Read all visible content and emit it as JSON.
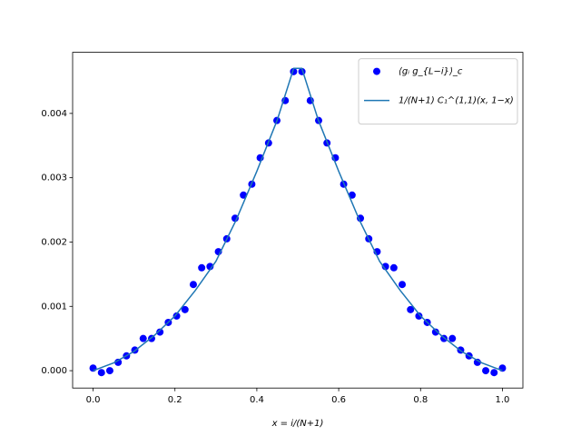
{
  "chart_data": {
    "type": "scatter",
    "xlabel": "x = i/(N+1)",
    "xlim": [
      -0.05,
      1.05
    ],
    "ylim": [
      -0.00027,
      0.00495
    ],
    "xticks": [
      {
        "value": 0,
        "label": "0.0"
      },
      {
        "value": 0.2,
        "label": "0.2"
      },
      {
        "value": 0.4,
        "label": "0.4"
      },
      {
        "value": 0.6,
        "label": "0.6"
      },
      {
        "value": 0.8,
        "label": "0.8"
      },
      {
        "value": 1,
        "label": "1.0"
      }
    ],
    "yticks": [
      {
        "value": 0,
        "label": "0.000"
      },
      {
        "value": 0.001,
        "label": "0.001"
      },
      {
        "value": 0.002,
        "label": "0.002"
      },
      {
        "value": 0.003,
        "label": "0.003"
      },
      {
        "value": 0.004,
        "label": "0.004"
      }
    ],
    "legend": "upper right",
    "series": [
      {
        "name": "⟨gᵢ g_{L−i}⟩_c",
        "type": "scatter",
        "color": "#0000ff",
        "x": [
          0,
          0.0204,
          0.0408,
          0.0612,
          0.0816,
          0.102,
          0.1224,
          0.1429,
          0.1633,
          0.1837,
          0.2041,
          0.2245,
          0.2449,
          0.2653,
          0.2857,
          0.3061,
          0.3265,
          0.3469,
          0.3673,
          0.3878,
          0.4082,
          0.4286,
          0.449,
          0.4694,
          0.4898,
          0.5102,
          0.5306,
          0.551,
          0.5714,
          0.5918,
          0.6122,
          0.6327,
          0.6531,
          0.6735,
          0.6939,
          0.7143,
          0.7347,
          0.7551,
          0.7755,
          0.7959,
          0.8163,
          0.8367,
          0.8571,
          0.8776,
          0.898,
          0.9184,
          0.9388,
          0.9592,
          0.9796,
          1
        ],
        "values": [
          4e-05,
          -3e-05,
          0.0,
          0.00013,
          0.00023,
          0.00032,
          0.0005,
          0.0005,
          0.0006,
          0.00075,
          0.00085,
          0.00095,
          0.00134,
          0.0016,
          0.00162,
          0.00185,
          0.00205,
          0.00237,
          0.00273,
          0.0029,
          0.00331,
          0.00354,
          0.00389,
          0.0042,
          0.00465,
          0.00465,
          0.0042,
          0.00389,
          0.00354,
          0.00331,
          0.0029,
          0.00273,
          0.00237,
          0.00205,
          0.00185,
          0.00162,
          0.0016,
          0.00134,
          0.00095,
          0.00085,
          0.00075,
          0.0006,
          0.0005,
          0.0005,
          0.00032,
          0.00023,
          0.00013,
          0.0,
          -3e-05,
          4e-05
        ]
      },
      {
        "name": "1/(N+1) C₁^(1,1)(x, 1−x)",
        "type": "line",
        "color": "#1f77b4",
        "x": [
          0,
          0.05,
          0.1,
          0.15,
          0.2,
          0.25,
          0.3,
          0.35,
          0.4,
          0.45,
          0.49,
          0.51,
          0.55,
          0.6,
          0.65,
          0.7,
          0.75,
          0.8,
          0.85,
          0.9,
          0.95,
          1
        ],
        "values": [
          0,
          0.00012,
          0.0003,
          0.00055,
          0.00085,
          0.00125,
          0.0017,
          0.00235,
          0.0031,
          0.0039,
          0.0047,
          0.0047,
          0.0039,
          0.0031,
          0.00235,
          0.0017,
          0.00125,
          0.00085,
          0.00055,
          0.0003,
          0.00012,
          0
        ]
      }
    ]
  }
}
